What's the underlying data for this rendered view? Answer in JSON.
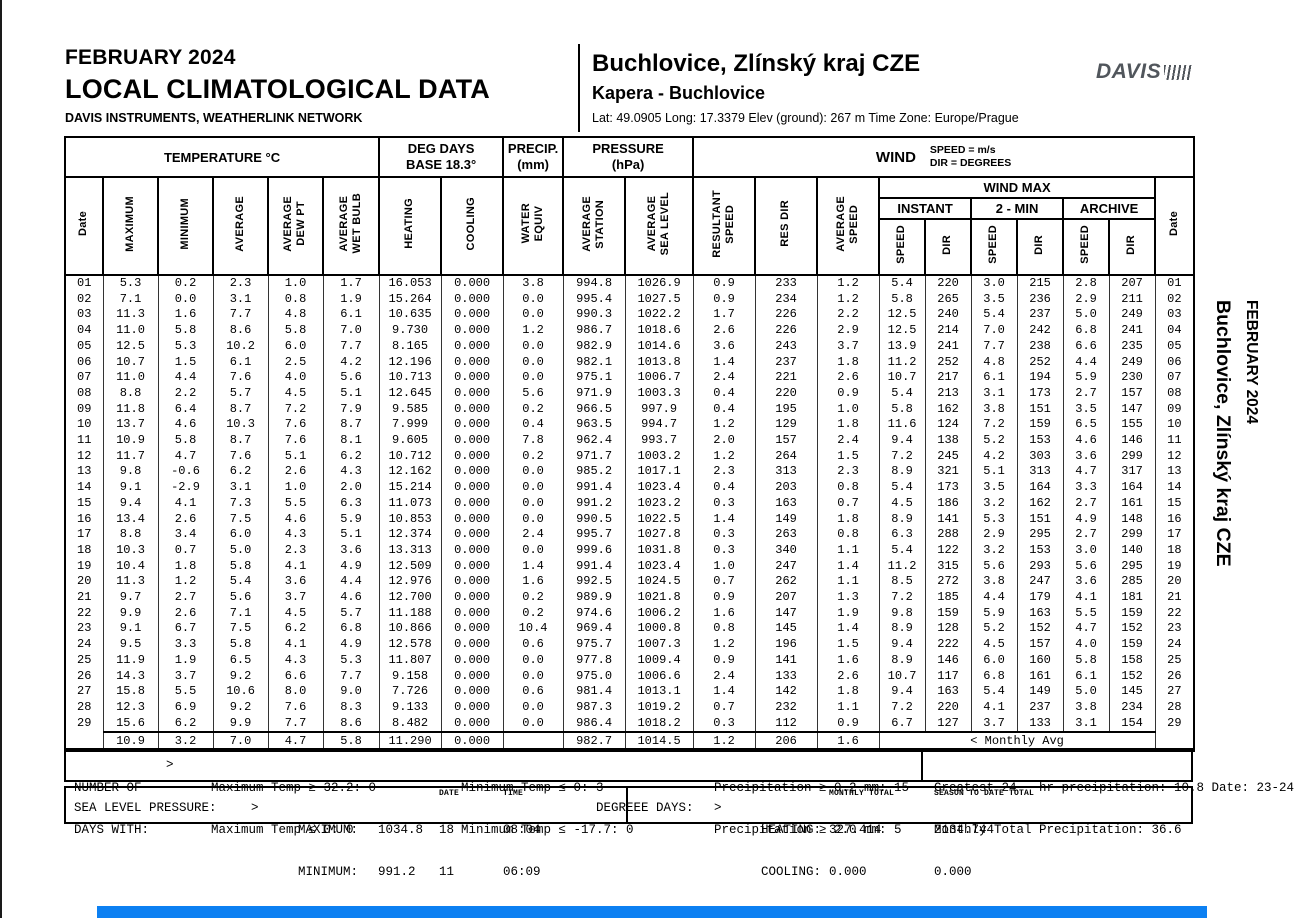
{
  "header": {
    "month_title": "FEBRUARY 2024",
    "report_title": "LOCAL CLIMATOLOGICAL DATA",
    "network": "DAVIS INSTRUMENTS, WEATHERLINK NETWORK",
    "station_name": "Buchlovice, Zlínský kraj CZE",
    "station_sub": "Kapera - Buchlovice",
    "station_meta": "Lat: 49.0905  Long: 17.3379  Elev (ground): 267 m  Time Zone: Europe/Prague",
    "logo_text": "DAVIS"
  },
  "side_label": {
    "line1": "FEBRUARY 2024",
    "line2": "Buchlovice, Zlínský kraj CZE"
  },
  "table": {
    "groups": {
      "temperature": "TEMPERATURE °C",
      "deg_days_1": "DEG DAYS",
      "deg_days_2": "BASE 18.3°",
      "precip_1": "PRECIP.",
      "precip_2": "(mm)",
      "pressure_1": "PRESSURE",
      "pressure_2": "(hPa)",
      "wind": "WIND",
      "wind_units_1": "SPEED = m/s",
      "wind_units_2": "DIR = DEGREES",
      "wind_max": "WIND MAX",
      "instant": "INSTANT",
      "two_min": "2 - MIN",
      "archive": "ARCHIVE"
    },
    "columns": [
      "Date",
      "MAXIMUM",
      "MINIMUM",
      "AVERAGE",
      "AVERAGE\nDEW PT",
      "AVERAGE\nWET BULB",
      "HEATING",
      "COOLING",
      "WATER\nEQUIV",
      "AVERAGE\nSTATION",
      "AVERAGE\nSEA LEVEL",
      "RESULTANT\nSPEED",
      "RES DIR",
      "AVERAGE\nSPEED",
      "SPEED",
      "DIR",
      "SPEED",
      "DIR",
      "SPEED",
      "DIR",
      "Date"
    ],
    "rows": [
      [
        "01",
        "5.3",
        "0.2",
        "2.3",
        "1.0",
        "1.7",
        "16.053",
        "0.000",
        "3.8",
        "994.8",
        "1026.9",
        "0.9",
        "233",
        "1.2",
        "5.4",
        "220",
        "3.0",
        "215",
        "2.8",
        "207",
        "01"
      ],
      [
        "02",
        "7.1",
        "0.0",
        "3.1",
        "0.8",
        "1.9",
        "15.264",
        "0.000",
        "0.0",
        "995.4",
        "1027.5",
        "0.9",
        "234",
        "1.2",
        "5.8",
        "265",
        "3.5",
        "236",
        "2.9",
        "211",
        "02"
      ],
      [
        "03",
        "11.3",
        "1.6",
        "7.7",
        "4.8",
        "6.1",
        "10.635",
        "0.000",
        "0.0",
        "990.3",
        "1022.2",
        "1.7",
        "226",
        "2.2",
        "12.5",
        "240",
        "5.4",
        "237",
        "5.0",
        "249",
        "03"
      ],
      [
        "04",
        "11.0",
        "5.8",
        "8.6",
        "5.8",
        "7.0",
        "9.730",
        "0.000",
        "1.2",
        "986.7",
        "1018.6",
        "2.6",
        "226",
        "2.9",
        "12.5",
        "214",
        "7.0",
        "242",
        "6.8",
        "241",
        "04"
      ],
      [
        "05",
        "12.5",
        "5.3",
        "10.2",
        "6.0",
        "7.7",
        "8.165",
        "0.000",
        "0.0",
        "982.9",
        "1014.6",
        "3.6",
        "243",
        "3.7",
        "13.9",
        "241",
        "7.7",
        "238",
        "6.6",
        "235",
        "05"
      ],
      [
        "06",
        "10.7",
        "1.5",
        "6.1",
        "2.5",
        "4.2",
        "12.196",
        "0.000",
        "0.0",
        "982.1",
        "1013.8",
        "1.4",
        "237",
        "1.8",
        "11.2",
        "252",
        "4.8",
        "252",
        "4.4",
        "249",
        "06"
      ],
      [
        "07",
        "11.0",
        "4.4",
        "7.6",
        "4.0",
        "5.6",
        "10.713",
        "0.000",
        "0.0",
        "975.1",
        "1006.7",
        "2.4",
        "221",
        "2.6",
        "10.7",
        "217",
        "6.1",
        "194",
        "5.9",
        "230",
        "07"
      ],
      [
        "08",
        "8.8",
        "2.2",
        "5.7",
        "4.5",
        "5.1",
        "12.645",
        "0.000",
        "5.6",
        "971.9",
        "1003.3",
        "0.4",
        "220",
        "0.9",
        "5.4",
        "213",
        "3.1",
        "173",
        "2.7",
        "157",
        "08"
      ],
      [
        "09",
        "11.8",
        "6.4",
        "8.7",
        "7.2",
        "7.9",
        "9.585",
        "0.000",
        "0.2",
        "966.5",
        "997.9",
        "0.4",
        "195",
        "1.0",
        "5.8",
        "162",
        "3.8",
        "151",
        "3.5",
        "147",
        "09"
      ],
      [
        "10",
        "13.7",
        "4.6",
        "10.3",
        "7.6",
        "8.7",
        "7.999",
        "0.000",
        "0.4",
        "963.5",
        "994.7",
        "1.2",
        "129",
        "1.8",
        "11.6",
        "124",
        "7.2",
        "159",
        "6.5",
        "155",
        "10"
      ],
      [
        "11",
        "10.9",
        "5.8",
        "8.7",
        "7.6",
        "8.1",
        "9.605",
        "0.000",
        "7.8",
        "962.4",
        "993.7",
        "2.0",
        "157",
        "2.4",
        "9.4",
        "138",
        "5.2",
        "153",
        "4.6",
        "146",
        "11"
      ],
      [
        "12",
        "11.7",
        "4.7",
        "7.6",
        "5.1",
        "6.2",
        "10.712",
        "0.000",
        "0.2",
        "971.7",
        "1003.2",
        "1.2",
        "264",
        "1.5",
        "7.2",
        "245",
        "4.2",
        "303",
        "3.6",
        "299",
        "12"
      ],
      [
        "13",
        "9.8",
        "-0.6",
        "6.2",
        "2.6",
        "4.3",
        "12.162",
        "0.000",
        "0.0",
        "985.2",
        "1017.1",
        "2.3",
        "313",
        "2.3",
        "8.9",
        "321",
        "5.1",
        "313",
        "4.7",
        "317",
        "13"
      ],
      [
        "14",
        "9.1",
        "-2.9",
        "3.1",
        "1.0",
        "2.0",
        "15.214",
        "0.000",
        "0.0",
        "991.4",
        "1023.4",
        "0.4",
        "203",
        "0.8",
        "5.4",
        "173",
        "3.5",
        "164",
        "3.3",
        "164",
        "14"
      ],
      [
        "15",
        "9.4",
        "4.1",
        "7.3",
        "5.5",
        "6.3",
        "11.073",
        "0.000",
        "0.0",
        "991.2",
        "1023.2",
        "0.3",
        "163",
        "0.7",
        "4.5",
        "186",
        "3.2",
        "162",
        "2.7",
        "161",
        "15"
      ],
      [
        "16",
        "13.4",
        "2.6",
        "7.5",
        "4.6",
        "5.9",
        "10.853",
        "0.000",
        "0.0",
        "990.5",
        "1022.5",
        "1.4",
        "149",
        "1.8",
        "8.9",
        "141",
        "5.3",
        "151",
        "4.9",
        "148",
        "16"
      ],
      [
        "17",
        "8.8",
        "3.4",
        "6.0",
        "4.3",
        "5.1",
        "12.374",
        "0.000",
        "2.4",
        "995.7",
        "1027.8",
        "0.3",
        "263",
        "0.8",
        "6.3",
        "288",
        "2.9",
        "295",
        "2.7",
        "299",
        "17"
      ],
      [
        "18",
        "10.3",
        "0.7",
        "5.0",
        "2.3",
        "3.6",
        "13.313",
        "0.000",
        "0.0",
        "999.6",
        "1031.8",
        "0.3",
        "340",
        "1.1",
        "5.4",
        "122",
        "3.2",
        "153",
        "3.0",
        "140",
        "18"
      ],
      [
        "19",
        "10.4",
        "1.8",
        "5.8",
        "4.1",
        "4.9",
        "12.509",
        "0.000",
        "1.4",
        "991.4",
        "1023.4",
        "1.0",
        "247",
        "1.4",
        "11.2",
        "315",
        "5.6",
        "293",
        "5.6",
        "295",
        "19"
      ],
      [
        "20",
        "11.3",
        "1.2",
        "5.4",
        "3.6",
        "4.4",
        "12.976",
        "0.000",
        "1.6",
        "992.5",
        "1024.5",
        "0.7",
        "262",
        "1.1",
        "8.5",
        "272",
        "3.8",
        "247",
        "3.6",
        "285",
        "20"
      ],
      [
        "21",
        "9.7",
        "2.7",
        "5.6",
        "3.7",
        "4.6",
        "12.700",
        "0.000",
        "0.2",
        "989.9",
        "1021.8",
        "0.9",
        "207",
        "1.3",
        "7.2",
        "185",
        "4.4",
        "179",
        "4.1",
        "181",
        "21"
      ],
      [
        "22",
        "9.9",
        "2.6",
        "7.1",
        "4.5",
        "5.7",
        "11.188",
        "0.000",
        "0.2",
        "974.6",
        "1006.2",
        "1.6",
        "147",
        "1.9",
        "9.8",
        "159",
        "5.9",
        "163",
        "5.5",
        "159",
        "22"
      ],
      [
        "23",
        "9.1",
        "6.7",
        "7.5",
        "6.2",
        "6.8",
        "10.866",
        "0.000",
        "10.4",
        "969.4",
        "1000.8",
        "0.8",
        "145",
        "1.4",
        "8.9",
        "128",
        "5.2",
        "152",
        "4.7",
        "152",
        "23"
      ],
      [
        "24",
        "9.5",
        "3.3",
        "5.8",
        "4.1",
        "4.9",
        "12.578",
        "0.000",
        "0.6",
        "975.7",
        "1007.3",
        "1.2",
        "196",
        "1.5",
        "9.4",
        "222",
        "4.5",
        "157",
        "4.0",
        "159",
        "24"
      ],
      [
        "25",
        "11.9",
        "1.9",
        "6.5",
        "4.3",
        "5.3",
        "11.807",
        "0.000",
        "0.0",
        "977.8",
        "1009.4",
        "0.9",
        "141",
        "1.6",
        "8.9",
        "146",
        "6.0",
        "160",
        "5.8",
        "158",
        "25"
      ],
      [
        "26",
        "14.3",
        "3.7",
        "9.2",
        "6.6",
        "7.7",
        "9.158",
        "0.000",
        "0.0",
        "975.0",
        "1006.6",
        "2.4",
        "133",
        "2.6",
        "10.7",
        "117",
        "6.8",
        "161",
        "6.1",
        "152",
        "26"
      ],
      [
        "27",
        "15.8",
        "5.5",
        "10.6",
        "8.0",
        "9.0",
        "7.726",
        "0.000",
        "0.6",
        "981.4",
        "1013.1",
        "1.4",
        "142",
        "1.8",
        "9.4",
        "163",
        "5.4",
        "149",
        "5.0",
        "145",
        "27"
      ],
      [
        "28",
        "12.3",
        "6.9",
        "9.2",
        "7.6",
        "8.3",
        "9.133",
        "0.000",
        "0.0",
        "987.3",
        "1019.2",
        "0.7",
        "232",
        "1.1",
        "7.2",
        "220",
        "4.1",
        "237",
        "3.8",
        "234",
        "28"
      ],
      [
        "29",
        "15.6",
        "6.2",
        "9.9",
        "7.7",
        "8.6",
        "8.482",
        "0.000",
        "0.0",
        "986.4",
        "1018.2",
        "0.3",
        "112",
        "0.9",
        "6.7",
        "127",
        "3.7",
        "133",
        "3.1",
        "154",
        "29"
      ]
    ],
    "monthly_avg": {
      "values": [
        "10.9",
        "3.2",
        "7.0",
        "4.7",
        "5.8",
        "11.290",
        "0.000",
        "",
        "982.7",
        "1014.5",
        "1.2",
        "206",
        "1.6"
      ],
      "label": "< Monthly Avg"
    }
  },
  "summary": {
    "arrow": ">",
    "days_with_label_1": "NUMBER OF",
    "days_with_label_2": "DAYS WITH:",
    "max_temp_ge": "Maximum Temp ≥ 32.2: 0",
    "max_temp_le": "Maximum Temp ≤ 0: 0",
    "min_temp_le0": "Minimum Temp ≤ 0: 3",
    "min_temp_le17": "Minimum Temp ≤ -17.7: 0",
    "precip_ge02": "Precipitation ≥ 0.2 mm: 15",
    "precip_ge20": "Precipitation ≥ 2.0 mm: 5",
    "greatest_24hr": "Greatest 24 — hr precipitation: 10.8 Date: 23-24",
    "monthly_total_precip": "Monthly Total Precipitation: 36.6",
    "slp_label": "SEA LEVEL PRESSURE:",
    "slp_max_label": "MAXIMUM:",
    "slp_max_value": "1034.8",
    "slp_max_date": "18",
    "slp_max_time": "08:04",
    "slp_min_label": "MINIMUM:",
    "slp_min_value": "991.2",
    "slp_min_date": "11",
    "slp_min_time": "06:09",
    "date_caption": "DATE",
    "time_caption": "TIME",
    "degree_days_label": "DEGREEE DAYS:",
    "monthly_total_caption": "MONTHLY TOTAL",
    "season_caption": "SEASON TO DATE TOTAL",
    "heating_label": "HEATING:",
    "heating_monthly": "327.414",
    "heating_season": "2134.744",
    "cooling_label": "COOLING:",
    "cooling_monthly": "0.000",
    "cooling_season": "0.000"
  },
  "colors": {
    "accent_bar": "#0c80f2"
  }
}
